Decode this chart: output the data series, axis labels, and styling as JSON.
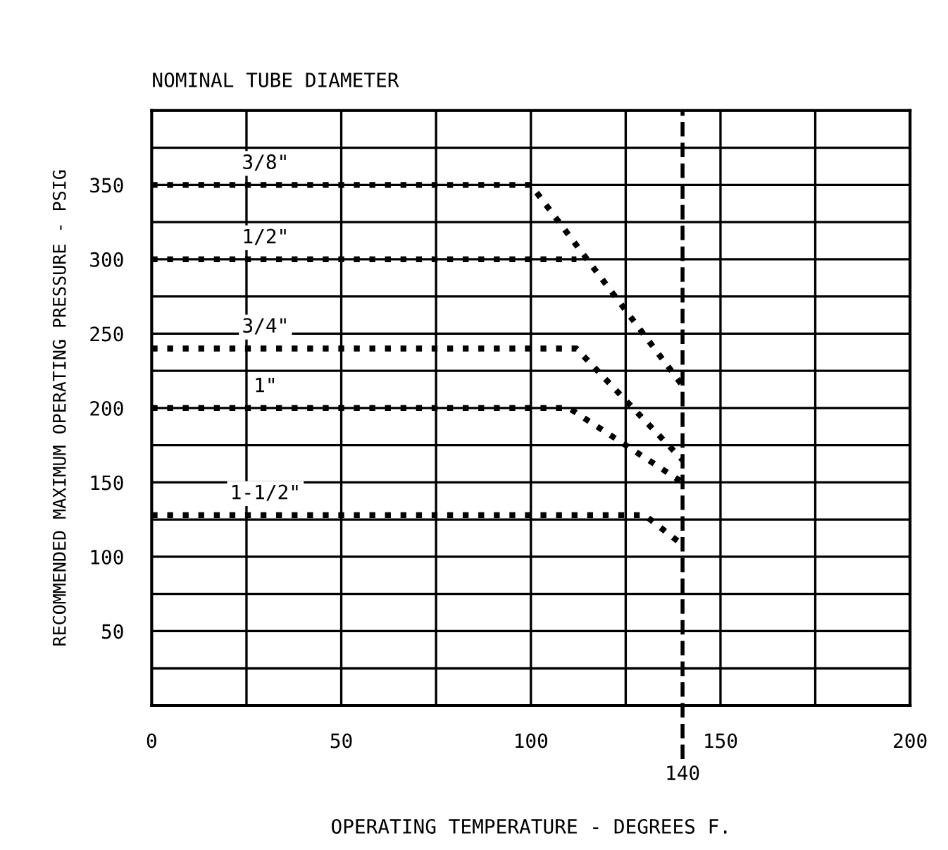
{
  "chart_data": {
    "type": "line",
    "title": "NOMINAL TUBE DIAMETER",
    "xlabel": "OPERATING TEMPERATURE - DEGREES F.",
    "ylabel": "RECOMMENDED MAXIMUM OPERATING PRESSURE - PSIG",
    "series": [
      {
        "name": "3/8\"",
        "color": "#000000",
        "x": [
          0,
          100,
          140
        ],
        "values": [
          350,
          350,
          215
        ]
      },
      {
        "name": "1/2\"",
        "color": "#000000",
        "x": [
          0,
          112
        ],
        "values": [
          300,
          300
        ]
      },
      {
        "name": "3/4\"",
        "color": "#000000",
        "x": [
          0,
          112,
          140
        ],
        "values": [
          240,
          240,
          165
        ]
      },
      {
        "name": "1\"",
        "color": "#000000",
        "x": [
          0,
          110,
          140
        ],
        "values": [
          200,
          200,
          150
        ]
      },
      {
        "name": "1-1/2\"",
        "color": "#000000",
        "x": [
          0,
          130,
          140
        ],
        "values": [
          128,
          128,
          108
        ]
      }
    ],
    "xlim": [
      0,
      200
    ],
    "ylim": [
      0,
      400
    ],
    "xticks": [
      0,
      {
        "value": 25,
        "label": null
      },
      50,
      {
        "value": 75,
        "label": null
      },
      100,
      {
        "value": 125,
        "label": null
      },
      150,
      {
        "value": 175,
        "label": null
      },
      200
    ],
    "yticks": [
      {
        "value": 0,
        "label": null
      },
      {
        "value": 25,
        "label": null
      },
      50,
      {
        "value": 75,
        "label": null
      },
      100,
      {
        "value": 125,
        "label": null
      },
      150,
      {
        "value": 175,
        "label": null
      },
      200,
      {
        "value": 225,
        "label": null
      },
      250,
      {
        "value": 275,
        "label": null
      },
      300,
      {
        "value": 325,
        "label": null
      },
      350,
      {
        "value": 375,
        "label": null
      },
      {
        "value": 400,
        "label": null
      }
    ],
    "ref_lines": [
      {
        "axis": "x",
        "value": 140,
        "label": "140",
        "color": "#000000",
        "line_style": "dashed"
      }
    ],
    "grid": true,
    "legend": false,
    "marker": "none",
    "line_style": "dotted"
  }
}
